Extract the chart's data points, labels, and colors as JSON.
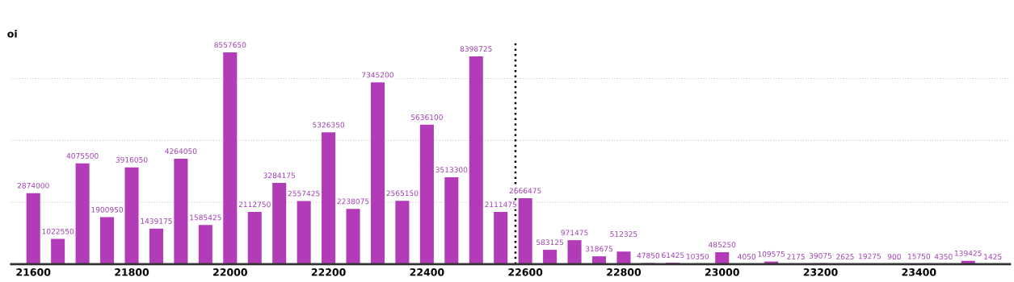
{
  "chart_data": {
    "type": "bar",
    "ylabel": "oi",
    "x": [
      21600,
      21650,
      21700,
      21750,
      21800,
      21850,
      21900,
      21950,
      22000,
      22050,
      22100,
      22150,
      22200,
      22250,
      22300,
      22350,
      22400,
      22450,
      22500,
      22550,
      22600,
      22650,
      22700,
      22750,
      22800,
      22850,
      22900,
      22950,
      23000,
      23050,
      23100,
      23150,
      23200,
      23250,
      23300,
      23350,
      23400,
      23450,
      23500,
      23550
    ],
    "values": [
      2874000,
      1022550,
      4075500,
      1900950,
      3916050,
      1439175,
      4264050,
      1585425,
      8557650,
      2112750,
      3284175,
      2557425,
      5326350,
      2238075,
      7345200,
      2565150,
      5636100,
      3513300,
      8398725,
      2111475,
      2666475,
      583125,
      971475,
      318675,
      512325,
      47850,
      61425,
      10350,
      485250,
      4050,
      109575,
      2175,
      39075,
      2625,
      19275,
      900,
      15750,
      4350,
      139425,
      1425
    ],
    "color": "#b23bb8",
    "data_labels": true,
    "xlim": [
      21555,
      23585
    ],
    "xticks": [
      21600,
      21800,
      22000,
      22200,
      22400,
      22600,
      22800,
      23000,
      23200,
      23400
    ],
    "ylim": [
      0,
      9000000
    ],
    "yticks": [
      {
        "value": 0,
        "label": null
      },
      {
        "value": 2500000,
        "label": null
      },
      {
        "value": 5000000,
        "label": null
      },
      {
        "value": 7500000,
        "label": null
      }
    ],
    "tick_labels": "x",
    "grid": "y",
    "ref_lines": [
      {
        "axis": "x",
        "value": 22580,
        "color": "#000000",
        "line_style": "dotted"
      }
    ]
  }
}
